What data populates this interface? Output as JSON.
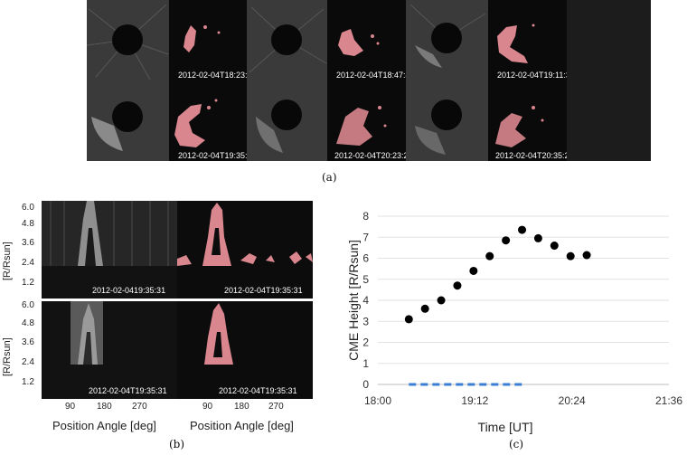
{
  "panel_a": {
    "caption": "(a)",
    "timestamps": [
      "2012-02-04T18:23:31",
      "2012-02-04T18:47:43",
      "2012-02-04T19:11:30",
      "2012-02-04T19:35:31",
      "2012-02-04T20:23:29",
      "2012-02-04T20:35:29"
    ]
  },
  "panel_b": {
    "caption": "(b)",
    "ylabel": "[R/Rsun]",
    "xlabel": "Position Angle [deg]",
    "yticks": [
      "6.0",
      "4.8",
      "3.6",
      "2.4",
      "1.2"
    ],
    "xticks": [
      "90",
      "180",
      "270"
    ],
    "top_left_stamp": "2012-02-0419:35:31",
    "top_right_stamp": "2012-02-04T19:35:31",
    "bottom_left_stamp": "2012-02-04T19:35:31",
    "bottom_right_stamp": "2012-02-04T19:35:31"
  },
  "panel_c": {
    "caption": "(c)"
  },
  "colors": {
    "mask": "#d9868e",
    "points": "#000000",
    "dashed": "#3a7fd5",
    "background": "#1a1a1a"
  },
  "chart_data": {
    "type": "scatter",
    "xlabel": "Time [UT]",
    "ylabel": "CME Height [R/Rsun]",
    "xlim": [
      "18:00",
      "21:36"
    ],
    "xticks": [
      "18:00",
      "19:12",
      "20:24",
      "21:36"
    ],
    "ylim": [
      0,
      8
    ],
    "yticks": [
      0,
      1,
      2,
      3,
      4,
      5,
      6,
      7,
      8
    ],
    "grid": true,
    "series": [
      {
        "x": [
          "18:23",
          "18:35",
          "18:47",
          "18:59",
          "19:11",
          "19:23",
          "19:35",
          "19:47",
          "19:59",
          "20:11",
          "20:23",
          "20:35"
        ],
        "y": [
          3.1,
          3.6,
          4.0,
          4.7,
          5.4,
          6.1,
          6.85,
          7.35,
          6.95,
          6.6,
          6.1,
          6.15
        ]
      }
    ],
    "dashed_line": {
      "x": [
        "18:23",
        "19:47"
      ],
      "y": [
        0,
        0
      ]
    }
  }
}
